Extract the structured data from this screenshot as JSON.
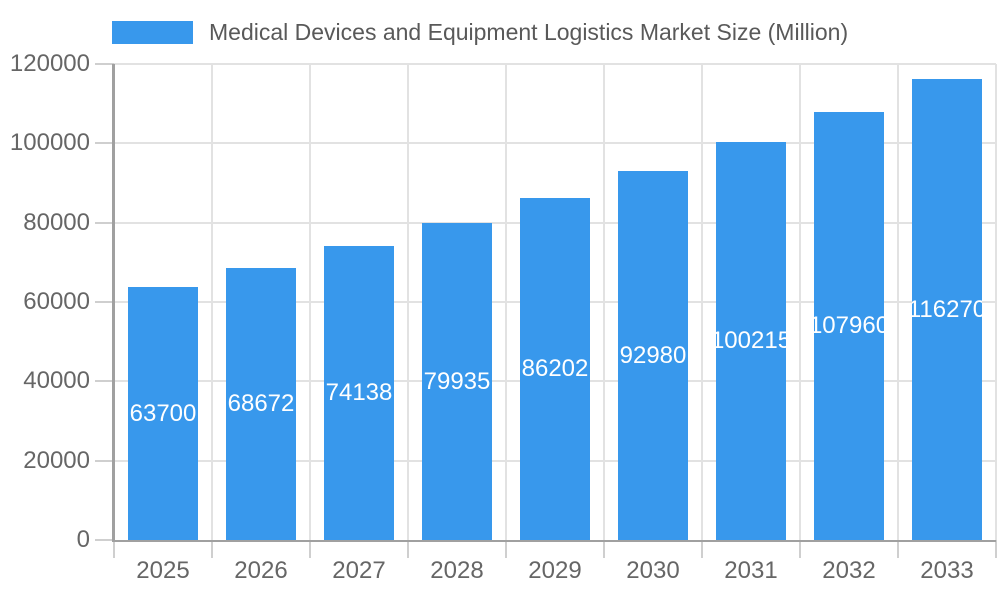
{
  "legend": {
    "swatch_color": "#3898EC"
  },
  "chart_data": {
    "type": "bar",
    "title": "Medical Devices and Equipment Logistics Market Size (Million)",
    "categories": [
      "2025",
      "2026",
      "2027",
      "2028",
      "2029",
      "2030",
      "2031",
      "2032",
      "2033"
    ],
    "values": [
      63700,
      68672,
      74138,
      79935,
      86202,
      92980,
      100215,
      107960,
      116270
    ],
    "bar_labels": [
      "63700",
      "68672",
      "74138",
      "79935",
      "86202",
      "92980",
      "100215",
      "107960",
      "116270"
    ],
    "xlabel": "",
    "ylabel": "",
    "ylim": [
      0,
      120000
    ],
    "ytick_interval": 20000,
    "ytick_labels": [
      "0",
      "20000",
      "40000",
      "60000",
      "80000",
      "100000",
      "120000"
    ],
    "grid": true,
    "legend_position": "top",
    "colors": {
      "bar": "#3898EC",
      "bar_label": "#ffffff",
      "gridline": "#e2e2e2",
      "axis_line": "#a0a0a0",
      "tick_mark": "#cfcfcf",
      "axis_text": "#666666",
      "legend_text": "#595959"
    }
  }
}
